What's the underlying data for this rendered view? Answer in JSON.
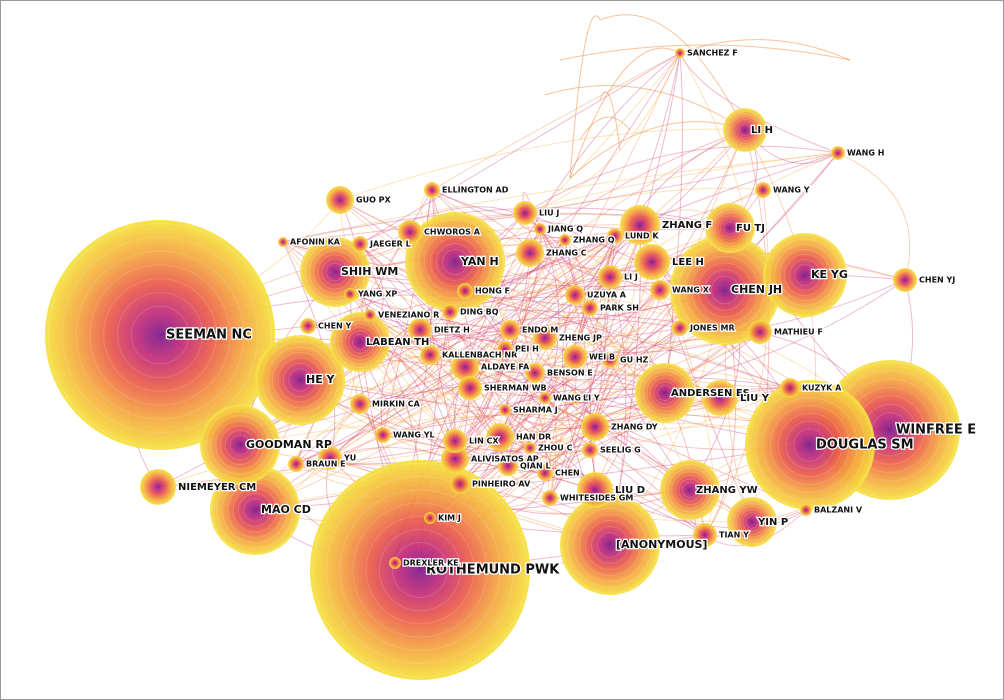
{
  "nodes": [
    {
      "label": "SEEMAN NC"
    },
    {
      "label": "ROTHEMUND PWK"
    },
    {
      "label": "WINFREE E"
    },
    {
      "label": "DOUGLAS SM"
    },
    {
      "label": "MAO CD"
    },
    {
      "label": "YAN H"
    },
    {
      "label": "CHEN JH"
    },
    {
      "label": "KE YG"
    },
    {
      "label": "[ANONYMOUS]"
    },
    {
      "label": "HE Y"
    },
    {
      "label": "GOODMAN RP"
    },
    {
      "label": "SHIH WM"
    },
    {
      "label": "ZHANG YW"
    },
    {
      "label": "YIN P"
    },
    {
      "label": "LI H"
    },
    {
      "label": "FU TJ"
    },
    {
      "label": "ANDERSEN ES"
    },
    {
      "label": "NIEMEYER CM"
    },
    {
      "label": "LABEAN TH"
    },
    {
      "label": "ZHANG F"
    },
    {
      "label": "LIU Y"
    },
    {
      "label": "LEE H"
    },
    {
      "label": "LIU D"
    },
    {
      "label": "GUO PX"
    },
    {
      "label": "CHEN YJ"
    },
    {
      "label": "WANG H"
    },
    {
      "label": "WANG Y"
    },
    {
      "label": "SANCHEZ F"
    },
    {
      "label": "ELLINGTON AD"
    },
    {
      "label": "LIU J"
    },
    {
      "label": "ZHANG C"
    },
    {
      "label": "CHWOROS A"
    },
    {
      "label": "JAEGER L"
    },
    {
      "label": "AFONIN KA"
    },
    {
      "label": "LI J"
    },
    {
      "label": "WANG X"
    },
    {
      "label": "UZUYA A"
    },
    {
      "label": "PARK SH"
    },
    {
      "label": "DIETZ H"
    },
    {
      "label": "ENDO M"
    },
    {
      "label": "ZHENG JP"
    },
    {
      "label": "ALDAYE FA"
    },
    {
      "label": "WEI B"
    },
    {
      "label": "MATHIEU F"
    },
    {
      "label": "JONES MR"
    },
    {
      "label": "KUZYK A"
    },
    {
      "label": "CHEN Y"
    },
    {
      "label": "KALLENBACH NR"
    },
    {
      "label": "SHERMAN WB"
    },
    {
      "label": "BENSON E"
    },
    {
      "label": "MIRKIN CA"
    },
    {
      "label": "ZHANG DY"
    },
    {
      "label": "LIN CX"
    },
    {
      "label": "HAN DR"
    },
    {
      "label": "ALIVISATOS AP"
    },
    {
      "label": "QIAN L"
    },
    {
      "label": "CHEN"
    },
    {
      "label": "PINHEIRO AV"
    },
    {
      "label": "WHITESIDES GM"
    },
    {
      "label": "KIM J"
    },
    {
      "label": "DREXLER KE"
    },
    {
      "label": "TIAN Y"
    },
    {
      "label": "BALZANI V"
    },
    {
      "label": "WANG YL"
    },
    {
      "label": "BRAUN E"
    },
    {
      "label": "YU"
    },
    {
      "label": "HONG F"
    },
    {
      "label": "VENEZIANO R"
    },
    {
      "label": "DING BQ"
    },
    {
      "label": "PEI H"
    },
    {
      "label": "SEELIG G"
    },
    {
      "label": "ZHANG Q"
    },
    {
      "label": "JIANG Q"
    },
    {
      "label": "LUND K"
    },
    {
      "label": "YANG XP"
    },
    {
      "label": "GU HZ"
    },
    {
      "label": "WANG T"
    },
    {
      "label": "LI Y"
    },
    {
      "label": "SHARMA J"
    },
    {
      "label": "ZHOU C"
    }
  ]
}
